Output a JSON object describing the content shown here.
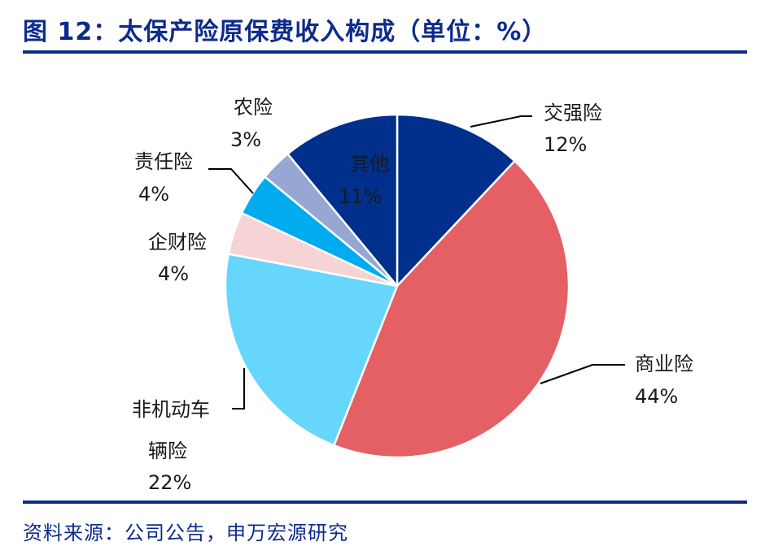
{
  "header": {
    "title": "图 12：太保产险原保费收入构成（单位：%）"
  },
  "footer": {
    "source": "资料来源：公司公告，申万宏源研究"
  },
  "chart_data": {
    "type": "pie",
    "title": "图 12：太保产险原保费收入构成（单位：%）",
    "unit": "%",
    "legend": "none",
    "slices": [
      {
        "label": "交强险",
        "value": 12,
        "value_label": "12%",
        "color": "#00308c"
      },
      {
        "label": "商业险",
        "value": 44,
        "value_label": "44%",
        "color": "#e46064"
      },
      {
        "label_lines": [
          "非机动车",
          "辆险"
        ],
        "value": 22,
        "value_label": "22%",
        "color": "#66d6fc"
      },
      {
        "label": "企财险",
        "value": 4,
        "value_label": "4%",
        "color": "#f6d3d5"
      },
      {
        "label": "责任险",
        "value": 4,
        "value_label": "4%",
        "color": "#00aced"
      },
      {
        "label": "农险",
        "value": 3,
        "value_label": "3%",
        "color": "#95a7d2"
      },
      {
        "label": "其他",
        "value": 11,
        "value_label": "11%",
        "color": "#00308c"
      }
    ]
  }
}
